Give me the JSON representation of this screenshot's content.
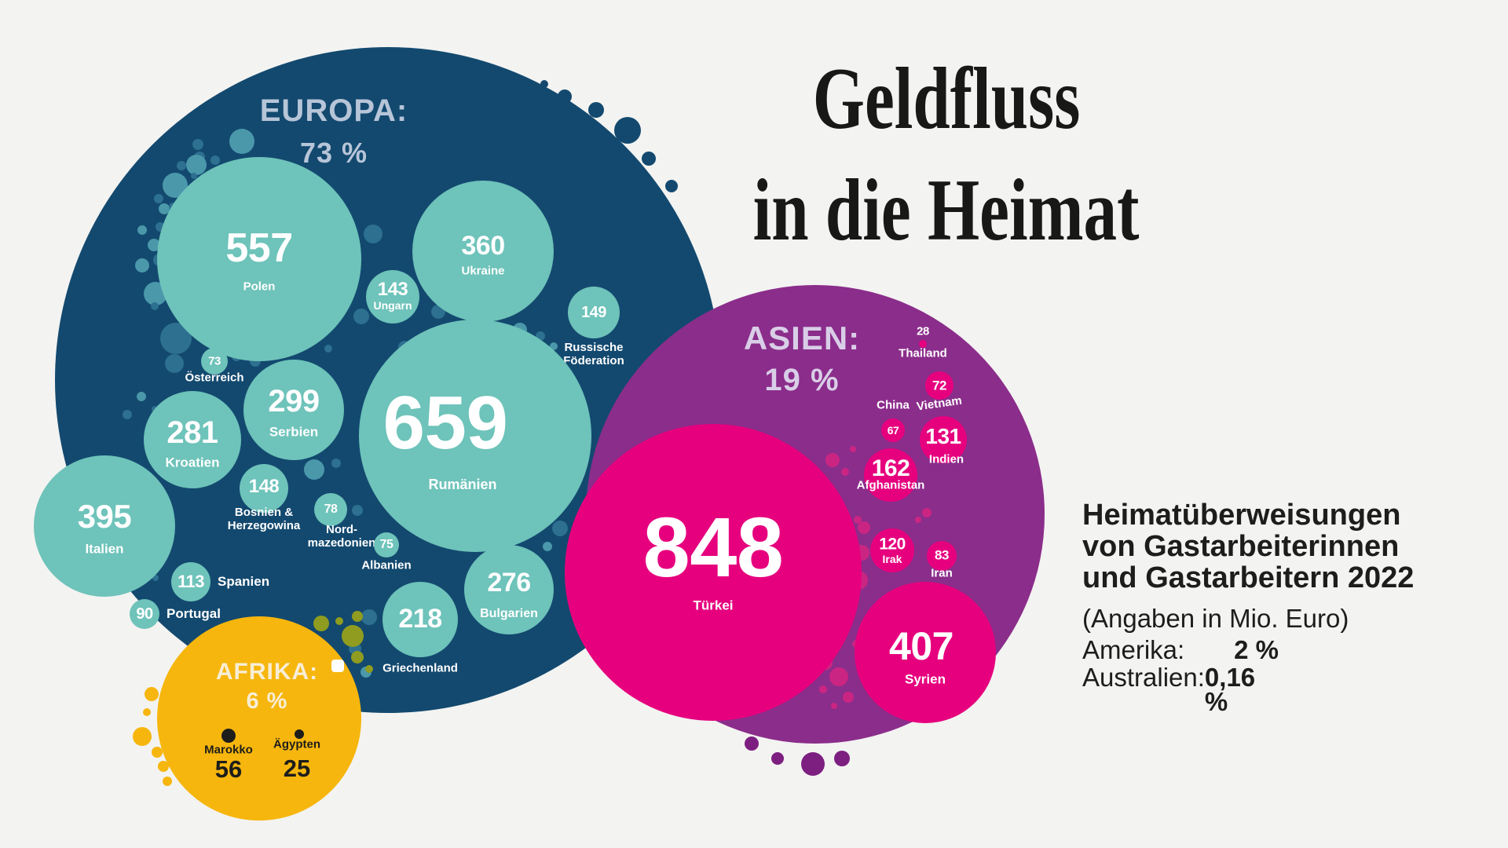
{
  "title": {
    "line1": "Geldfluss",
    "line2": "in die Heimat"
  },
  "info": {
    "heading": "Heimatüberweisungen\nvon Gastarbeiterinnen\nund Gastarbeitern 2022",
    "unit_note": "(Angaben in Mio. Euro)",
    "rows": [
      {
        "label": "Amerika:",
        "value": "2 %"
      },
      {
        "label": "Australien:",
        "value": "0,16 %"
      }
    ]
  },
  "regions": [
    {
      "id": "europa",
      "title": "EUROPA:",
      "share": "73 %"
    },
    {
      "id": "asien",
      "title": "ASIEN:",
      "share": "19 %"
    },
    {
      "id": "afrika",
      "title": "AFRIKA:",
      "share": "6 %"
    }
  ],
  "countries": [
    {
      "id": "polen",
      "region": "europa",
      "name": "Polen",
      "value": "557"
    },
    {
      "id": "ukraine",
      "region": "europa",
      "name": "Ukraine",
      "value": "360"
    },
    {
      "id": "ungarn",
      "region": "europa",
      "name": "Ungarn",
      "value": "143"
    },
    {
      "id": "russische",
      "region": "europa",
      "name": "Russische\nFöderation",
      "value": "149"
    },
    {
      "id": "oesterreich",
      "region": "europa",
      "name": "Österreich",
      "value": "73"
    },
    {
      "id": "serbien",
      "region": "europa",
      "name": "Serbien",
      "value": "299"
    },
    {
      "id": "kroatien",
      "region": "europa",
      "name": "Kroatien",
      "value": "281"
    },
    {
      "id": "rumaenien",
      "region": "europa",
      "name": "Rumänien",
      "value": "659"
    },
    {
      "id": "bosnien",
      "region": "europa",
      "name": "Bosnien &\nHerzegowina",
      "value": "148"
    },
    {
      "id": "nordmazedonien",
      "region": "europa",
      "name": "Nord-\nmazedonien",
      "value": "78"
    },
    {
      "id": "albanien",
      "region": "europa",
      "name": "Albanien",
      "value": "75"
    },
    {
      "id": "italien",
      "region": "europa",
      "name": "Italien",
      "value": "395"
    },
    {
      "id": "spanien",
      "region": "europa",
      "name": "Spanien",
      "value": "113"
    },
    {
      "id": "portugal",
      "region": "europa",
      "name": "Portugal",
      "value": "90"
    },
    {
      "id": "bulgarien",
      "region": "europa",
      "name": "Bulgarien",
      "value": "276"
    },
    {
      "id": "griechenland",
      "region": "europa",
      "name": "Griechenland",
      "value": "218"
    },
    {
      "id": "tuerkei",
      "region": "asien",
      "name": "Türkei",
      "value": "848"
    },
    {
      "id": "thailand",
      "region": "asien",
      "name": "Thailand",
      "value": "28"
    },
    {
      "id": "vietnam",
      "region": "asien",
      "name": "Vietnam",
      "value": "72"
    },
    {
      "id": "china",
      "region": "asien",
      "name": "China",
      "value": "67"
    },
    {
      "id": "indien",
      "region": "asien",
      "name": "Indien",
      "value": "131"
    },
    {
      "id": "afghanistan",
      "region": "asien",
      "name": "Afghanistan",
      "value": "162"
    },
    {
      "id": "irak",
      "region": "asien",
      "name": "Irak",
      "value": "120"
    },
    {
      "id": "iran",
      "region": "asien",
      "name": "Iran",
      "value": "83"
    },
    {
      "id": "syrien",
      "region": "asien",
      "name": "Syrien",
      "value": "407"
    },
    {
      "id": "marokko",
      "region": "afrika",
      "name": "Marokko",
      "value": "56"
    },
    {
      "id": "aegypten",
      "region": "afrika",
      "name": "Ägypten",
      "value": "25"
    }
  ],
  "colors": {
    "background": "#f3f3f1",
    "europa_circle": "#13496f",
    "europa_bubble": "#6ec3ba",
    "europa_title": "#b7c5d8",
    "asien_circle": "#8b2d8b",
    "asien_bubble": "#e6007e",
    "asien_title": "#d9cee7",
    "afrika_circle": "#f6b60d",
    "afrika_title": "#f8eed6",
    "text_dark": "#1d1d1b"
  },
  "chart_data": {
    "type": "bubble",
    "title": "Geldfluss in die Heimat",
    "subtitle": "Heimatüberweisungen von Gastarbeiterinnen und Gastarbeitern 2022",
    "unit": "Mio. Euro",
    "unit_note": "(Angaben in Mio. Euro)",
    "groups": [
      {
        "name": "Europa",
        "share_pct": 73,
        "countries": [
          {
            "country": "Polen",
            "value": 557
          },
          {
            "country": "Ukraine",
            "value": 360
          },
          {
            "country": "Ungarn",
            "value": 143
          },
          {
            "country": "Russische Föderation",
            "value": 149
          },
          {
            "country": "Österreich",
            "value": 73
          },
          {
            "country": "Serbien",
            "value": 299
          },
          {
            "country": "Kroatien",
            "value": 281
          },
          {
            "country": "Rumänien",
            "value": 659
          },
          {
            "country": "Bosnien & Herzegowina",
            "value": 148
          },
          {
            "country": "Nordmazedonien",
            "value": 78
          },
          {
            "country": "Albanien",
            "value": 75
          },
          {
            "country": "Italien",
            "value": 395
          },
          {
            "country": "Spanien",
            "value": 113
          },
          {
            "country": "Portugal",
            "value": 90
          },
          {
            "country": "Bulgarien",
            "value": 276
          },
          {
            "country": "Griechenland",
            "value": 218
          }
        ]
      },
      {
        "name": "Asien",
        "share_pct": 19,
        "countries": [
          {
            "country": "Türkei",
            "value": 848
          },
          {
            "country": "Thailand",
            "value": 28
          },
          {
            "country": "Vietnam",
            "value": 72
          },
          {
            "country": "China",
            "value": 67
          },
          {
            "country": "Indien",
            "value": 131
          },
          {
            "country": "Afghanistan",
            "value": 162
          },
          {
            "country": "Irak",
            "value": 120
          },
          {
            "country": "Iran",
            "value": 83
          },
          {
            "country": "Syrien",
            "value": 407
          }
        ]
      },
      {
        "name": "Afrika",
        "share_pct": 6,
        "countries": [
          {
            "country": "Marokko",
            "value": 56
          },
          {
            "country": "Ägypten",
            "value": 25
          }
        ]
      },
      {
        "name": "Amerika",
        "share_pct": 2,
        "countries": []
      },
      {
        "name": "Australien",
        "share_pct": 0.16,
        "countries": []
      }
    ],
    "layout_hint": "packed bubble chart; three region circles (Europa navy, Asien purple, Afrika yellow) with country bubbles sized by value"
  }
}
